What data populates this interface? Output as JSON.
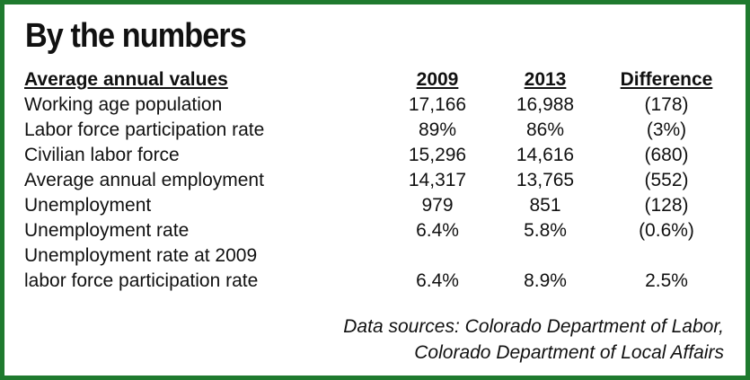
{
  "title": "By the numbers",
  "table": {
    "headers": {
      "label": "Average annual values",
      "y2009": "2009",
      "y2013": "2013",
      "diff": "Difference"
    },
    "rows": [
      {
        "label": "Working age population",
        "y2009": "17,166",
        "y2013": "16,988",
        "diff": "(178)"
      },
      {
        "label": "Labor force participation rate",
        "y2009": "89%",
        "y2013": "86%",
        "diff": "(3%)"
      },
      {
        "label": "Civilian labor force",
        "y2009": "15,296",
        "y2013": "14,616",
        "diff": "(680)"
      },
      {
        "label": "Average annual employment",
        "y2009": "14,317",
        "y2013": "13,765",
        "diff": "(552)"
      },
      {
        "label": "Unemployment",
        "y2009": "979",
        "y2013": "851",
        "diff": "(128)"
      },
      {
        "label": "Unemployment rate",
        "y2009": "6.4%",
        "y2013": "5.8%",
        "diff": "(0.6%)"
      },
      {
        "label": "Unemployment rate at 2009",
        "label_line2": "labor force participation rate",
        "y2009": "6.4%",
        "y2013": "8.9%",
        "diff": "2.5%"
      }
    ]
  },
  "sources": {
    "line1": "Data sources: Colorado Department of Labor,",
    "line2": "Colorado Department of Local Affairs"
  },
  "colors": {
    "border": "#1f7a2e",
    "text": "#111111",
    "background": "#ffffff"
  }
}
